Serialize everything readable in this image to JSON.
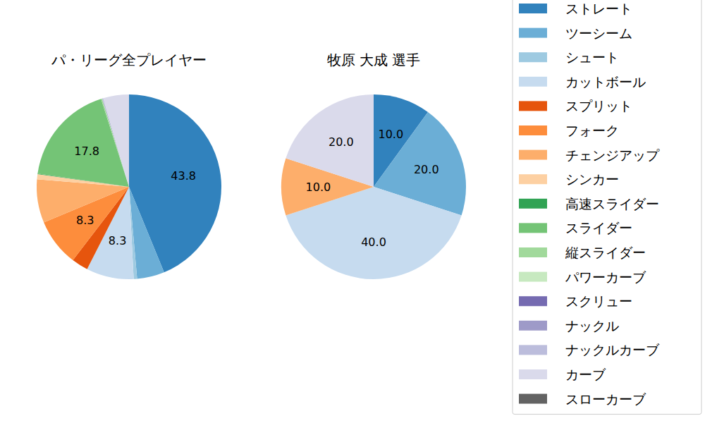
{
  "chart_data": [
    {
      "type": "pie",
      "title": "パ・リーグ全プレイヤー",
      "categories": [
        "ストレート",
        "ツーシーム",
        "シュート",
        "カットボール",
        "スプリット",
        "フォーク",
        "チェンジアップ",
        "シンカー",
        "高速スライダー",
        "スライダー",
        "縦スライダー",
        "パワーカーブ",
        "スクリュー",
        "ナックル",
        "ナックルカーブ",
        "カーブ",
        "スローカーブ"
      ],
      "values": [
        43.8,
        4.8,
        0.6,
        8.3,
        2.9,
        8.3,
        7.6,
        0.9,
        0.1,
        17.8,
        0.2,
        0,
        0,
        0,
        0.2,
        4.5,
        0
      ],
      "value_labels": [
        "43.8",
        null,
        null,
        "8.3",
        null,
        "8.3",
        null,
        null,
        null,
        "17.8",
        null,
        null,
        null,
        null,
        null,
        null,
        null
      ],
      "colors": [
        "#3182bd",
        "#6baed6",
        "#9ecae1",
        "#c6dbef",
        "#e6550d",
        "#fd8d3c",
        "#fdae6b",
        "#fdd0a2",
        "#31a354",
        "#74c476",
        "#a1d99b",
        "#c7e9c0",
        "#756bb1",
        "#9e9ac8",
        "#bcbddc",
        "#dadaeb",
        "#636363"
      ],
      "data_labels": true,
      "legend": "right"
    },
    {
      "type": "pie",
      "title": "牧原 大成  選手",
      "categories": [
        "ストレート",
        "ツーシーム",
        "シュート",
        "カットボール",
        "スプリット",
        "フォーク",
        "チェンジアップ",
        "シンカー",
        "高速スライダー",
        "スライダー",
        "縦スライダー",
        "パワーカーブ",
        "スクリュー",
        "ナックル",
        "ナックルカーブ",
        "カーブ",
        "スローカーブ"
      ],
      "values": [
        10,
        20,
        0,
        40,
        0,
        0,
        10,
        0,
        0,
        0,
        0,
        0,
        0,
        0,
        0,
        20,
        0
      ],
      "value_labels": [
        "10.0",
        "20.0",
        null,
        "40.0",
        null,
        null,
        "10.0",
        null,
        null,
        null,
        null,
        null,
        null,
        null,
        null,
        "20.0",
        null
      ],
      "colors": [
        "#3182bd",
        "#6baed6",
        "#9ecae1",
        "#c6dbef",
        "#e6550d",
        "#fd8d3c",
        "#fdae6b",
        "#fdd0a2",
        "#31a354",
        "#74c476",
        "#a1d99b",
        "#c7e9c0",
        "#756bb1",
        "#9e9ac8",
        "#bcbddc",
        "#dadaeb",
        "#636363"
      ],
      "data_labels": true
    }
  ]
}
